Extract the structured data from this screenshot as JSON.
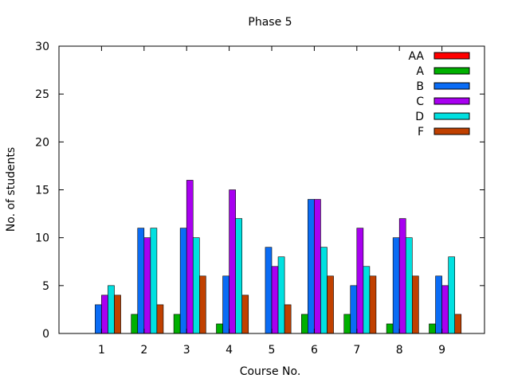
{
  "chart_data": {
    "type": "bar",
    "title": "Phase 5",
    "xlabel": "Course No.",
    "ylabel": "No. of students",
    "ylim": [
      0,
      30
    ],
    "yticks": [
      0,
      5,
      10,
      15,
      20,
      25,
      30
    ],
    "xlim": [
      0,
      10
    ],
    "categories": [
      "1",
      "2",
      "3",
      "4",
      "5",
      "6",
      "7",
      "8",
      "9"
    ],
    "grid": false,
    "legend_position": "top-right",
    "series": [
      {
        "name": "AA",
        "color": "#ff0000",
        "values": [
          0,
          0,
          0,
          0,
          0,
          0,
          0,
          0,
          0
        ]
      },
      {
        "name": "A",
        "color": "#00b000",
        "values": [
          0,
          2,
          2,
          1,
          0,
          2,
          2,
          1,
          1
        ]
      },
      {
        "name": "B",
        "color": "#0a6cf5",
        "values": [
          3,
          11,
          11,
          6,
          9,
          14,
          5,
          10,
          6
        ]
      },
      {
        "name": "C",
        "color": "#a800f0",
        "values": [
          4,
          10,
          16,
          15,
          7,
          14,
          11,
          12,
          5
        ]
      },
      {
        "name": "D",
        "color": "#00e0e0",
        "values": [
          5,
          11,
          10,
          12,
          8,
          9,
          7,
          10,
          8
        ]
      },
      {
        "name": "F",
        "color": "#c04000",
        "values": [
          4,
          3,
          6,
          4,
          3,
          6,
          6,
          6,
          2
        ]
      }
    ]
  }
}
